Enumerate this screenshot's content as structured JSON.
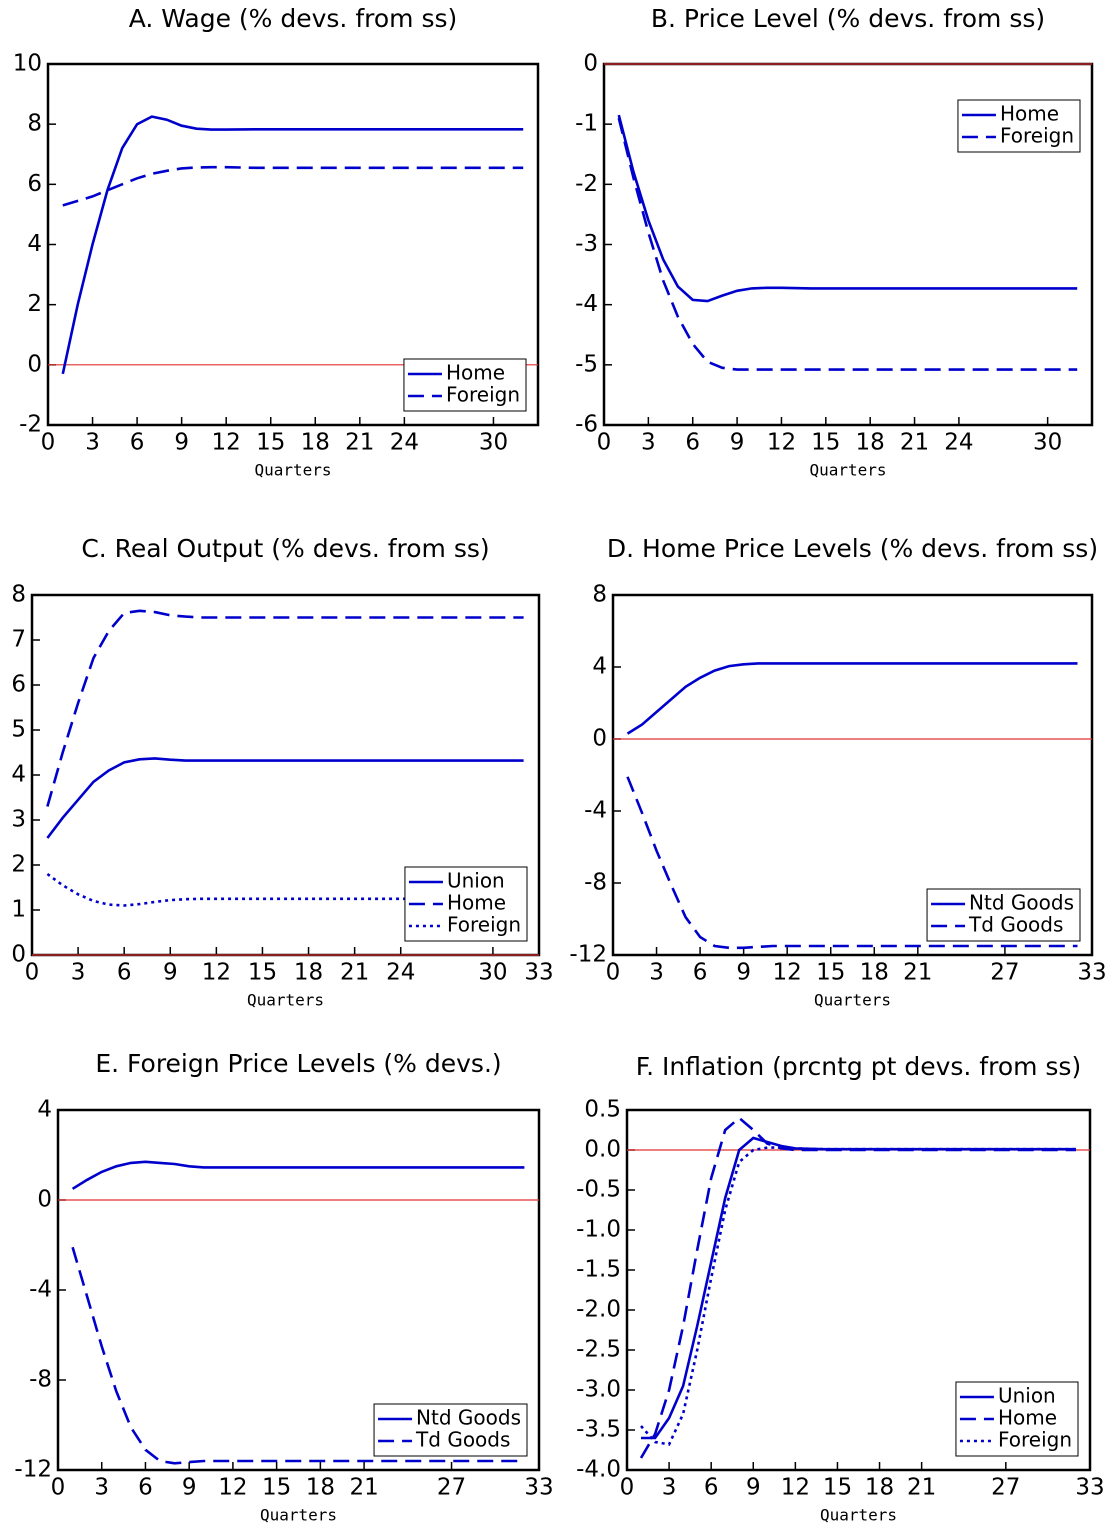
{
  "chart_data": [
    {
      "type": "line",
      "title": "A. Wage (% devs. from ss)",
      "x_label": "Quarters",
      "x": [
        1,
        2,
        3,
        4,
        5,
        6,
        7,
        8,
        9,
        10,
        11,
        12,
        14,
        16,
        20,
        24,
        28,
        32
      ],
      "xlim": [
        0,
        33
      ],
      "xticks": [
        0,
        3,
        6,
        9,
        12,
        15,
        18,
        21,
        24,
        30
      ],
      "ylim": [
        -2,
        10
      ],
      "yticks": [
        -2,
        0,
        2,
        4,
        6,
        8,
        10
      ],
      "zero_line": "#e03030",
      "legend": "lower right",
      "series": [
        {
          "name": "Home",
          "color": "#0000cc",
          "dash": "solid",
          "values": [
            -0.3,
            2.0,
            4.0,
            5.8,
            7.2,
            8.0,
            8.25,
            8.15,
            7.95,
            7.85,
            7.82,
            7.82,
            7.83,
            7.83,
            7.83,
            7.83,
            7.83,
            7.83
          ]
        },
        {
          "name": "Foreign",
          "color": "#0000cc",
          "dash": "dashed",
          "values": [
            5.3,
            5.45,
            5.6,
            5.8,
            6.0,
            6.2,
            6.35,
            6.45,
            6.53,
            6.56,
            6.57,
            6.57,
            6.55,
            6.55,
            6.55,
            6.55,
            6.55,
            6.55
          ]
        }
      ]
    },
    {
      "type": "line",
      "title": "B. Price Level (% devs. from ss)",
      "x_label": "Quarters",
      "x": [
        1,
        2,
        3,
        4,
        5,
        6,
        7,
        8,
        9,
        10,
        11,
        12,
        14,
        16,
        20,
        24,
        28,
        32
      ],
      "xlim": [
        0,
        33
      ],
      "xticks": [
        0,
        3,
        6,
        9,
        12,
        15,
        18,
        21,
        24,
        30
      ],
      "ylim": [
        -6,
        0
      ],
      "yticks": [
        -6,
        -5,
        -4,
        -3,
        -2,
        -1,
        0
      ],
      "zero_line": "#e03030",
      "legend": "upper right",
      "series": [
        {
          "name": "Home",
          "color": "#0000cc",
          "dash": "solid",
          "values": [
            -0.85,
            -1.8,
            -2.6,
            -3.25,
            -3.7,
            -3.92,
            -3.94,
            -3.85,
            -3.77,
            -3.73,
            -3.72,
            -3.72,
            -3.73,
            -3.73,
            -3.73,
            -3.73,
            -3.73,
            -3.73
          ]
        },
        {
          "name": "Foreign",
          "color": "#0000cc",
          "dash": "dashed",
          "values": [
            -0.9,
            -1.9,
            -2.8,
            -3.6,
            -4.2,
            -4.65,
            -4.95,
            -5.05,
            -5.08,
            -5.08,
            -5.08,
            -5.08,
            -5.08,
            -5.08,
            -5.08,
            -5.08,
            -5.08,
            -5.08
          ]
        }
      ]
    },
    {
      "type": "line",
      "title": "C. Real Output (% devs. from ss)",
      "x_label": "Quarters",
      "x": [
        1,
        2,
        3,
        4,
        5,
        6,
        7,
        8,
        9,
        10,
        11,
        12,
        14,
        16,
        20,
        24,
        28,
        32
      ],
      "xlim": [
        0,
        33
      ],
      "xticks": [
        0,
        3,
        6,
        9,
        12,
        15,
        18,
        21,
        24,
        30,
        33
      ],
      "ylim": [
        0,
        8
      ],
      "yticks": [
        0,
        1,
        2,
        3,
        4,
        5,
        6,
        7,
        8
      ],
      "zero_line": "#e03030",
      "legend": "lower right",
      "series": [
        {
          "name": "Union",
          "color": "#0000cc",
          "dash": "solid",
          "values": [
            2.6,
            3.05,
            3.45,
            3.85,
            4.1,
            4.28,
            4.35,
            4.37,
            4.34,
            4.32,
            4.32,
            4.32,
            4.32,
            4.32,
            4.32,
            4.32,
            4.32,
            4.32
          ]
        },
        {
          "name": "Home",
          "color": "#0000cc",
          "dash": "dashed",
          "values": [
            3.3,
            4.5,
            5.6,
            6.6,
            7.2,
            7.6,
            7.65,
            7.62,
            7.55,
            7.52,
            7.5,
            7.5,
            7.5,
            7.5,
            7.5,
            7.5,
            7.5,
            7.5
          ]
        },
        {
          "name": "Foreign",
          "color": "#0000cc",
          "dash": "dotted",
          "values": [
            1.8,
            1.55,
            1.35,
            1.2,
            1.12,
            1.1,
            1.13,
            1.18,
            1.22,
            1.24,
            1.25,
            1.25,
            1.25,
            1.25,
            1.25,
            1.25,
            1.25,
            1.25
          ]
        }
      ]
    },
    {
      "type": "line",
      "title": "D. Home Price Levels (% devs. from ss)",
      "x_label": "Quarters",
      "x": [
        1,
        2,
        3,
        4,
        5,
        6,
        7,
        8,
        9,
        10,
        11,
        12,
        14,
        16,
        20,
        24,
        28,
        32
      ],
      "xlim": [
        0,
        33
      ],
      "xticks": [
        0,
        3,
        6,
        9,
        12,
        15,
        18,
        21,
        27,
        33
      ],
      "ylim": [
        -12,
        8
      ],
      "yticks": [
        -12,
        -8,
        -4,
        0,
        4,
        8
      ],
      "zero_line": "#e03030",
      "legend": "lower right",
      "series": [
        {
          "name": "Ntd Goods",
          "color": "#0000cc",
          "dash": "solid",
          "values": [
            0.3,
            0.8,
            1.5,
            2.2,
            2.9,
            3.4,
            3.8,
            4.05,
            4.15,
            4.2,
            4.2,
            4.2,
            4.2,
            4.2,
            4.2,
            4.2,
            4.2,
            4.2
          ]
        },
        {
          "name": "Td Goods",
          "color": "#0000cc",
          "dash": "dashed",
          "values": [
            -2.1,
            -4.1,
            -6.2,
            -8.1,
            -9.9,
            -11.0,
            -11.5,
            -11.6,
            -11.6,
            -11.55,
            -11.5,
            -11.5,
            -11.5,
            -11.5,
            -11.5,
            -11.5,
            -11.5,
            -11.5
          ]
        }
      ]
    },
    {
      "type": "line",
      "title": "E. Foreign Price Levels (% devs.)",
      "x_label": "Quarters",
      "x": [
        1,
        2,
        3,
        4,
        5,
        6,
        7,
        8,
        9,
        10,
        11,
        12,
        14,
        16,
        20,
        24,
        28,
        32
      ],
      "xlim": [
        0,
        33
      ],
      "xticks": [
        0,
        3,
        6,
        9,
        12,
        15,
        18,
        21,
        27,
        33
      ],
      "ylim": [
        -12,
        4
      ],
      "yticks": [
        -12,
        -8,
        -4,
        0,
        4
      ],
      "zero_line": "#e03030",
      "legend": "lower right",
      "series": [
        {
          "name": "Ntd Goods",
          "color": "#0000cc",
          "dash": "solid",
          "values": [
            0.5,
            0.9,
            1.25,
            1.5,
            1.65,
            1.7,
            1.65,
            1.6,
            1.5,
            1.45,
            1.45,
            1.45,
            1.45,
            1.45,
            1.45,
            1.45,
            1.45,
            1.45
          ]
        },
        {
          "name": "Td Goods",
          "color": "#0000cc",
          "dash": "dashed",
          "values": [
            -2.1,
            -4.3,
            -6.5,
            -8.5,
            -10.1,
            -11.1,
            -11.6,
            -11.7,
            -11.65,
            -11.6,
            -11.6,
            -11.6,
            -11.6,
            -11.6,
            -11.6,
            -11.6,
            -11.6,
            -11.6
          ]
        }
      ]
    },
    {
      "type": "line",
      "title": "F. Inflation (prcntg pt devs. from ss)",
      "x_label": "Quarters",
      "x": [
        1,
        2,
        3,
        4,
        5,
        6,
        7,
        8,
        9,
        10,
        11,
        12,
        14,
        16,
        20,
        24,
        28,
        32
      ],
      "xlim": [
        0,
        33
      ],
      "xticks": [
        0,
        3,
        6,
        9,
        12,
        15,
        18,
        21,
        27,
        33
      ],
      "ylim": [
        -4,
        0.5
      ],
      "yticks": [
        {
          "value": -4,
          "label": "-4.0"
        },
        -3.5,
        {
          "value": -3,
          "label": "-3.0"
        },
        -2.5,
        {
          "value": -2,
          "label": "-2.0"
        },
        -1.5,
        {
          "value": -1,
          "label": "-1.0"
        },
        -0.5,
        {
          "value": 0,
          "label": "0.0"
        },
        0.5
      ],
      "zero_line": "#e03030",
      "legend": "lower right",
      "series": [
        {
          "name": "Union",
          "color": "#0000cc",
          "dash": "solid",
          "values": [
            -3.6,
            -3.6,
            -3.35,
            -2.95,
            -2.2,
            -1.4,
            -0.6,
            0.0,
            0.15,
            0.1,
            0.05,
            0.02,
            0.01,
            0.01,
            0.01,
            0.01,
            0.01,
            0.01
          ]
        },
        {
          "name": "Home",
          "color": "#0000cc",
          "dash": "dashed",
          "values": [
            -3.85,
            -3.55,
            -3.0,
            -2.2,
            -1.25,
            -0.35,
            0.25,
            0.4,
            0.25,
            0.08,
            0.02,
            0.0,
            0.0,
            0.0,
            0.0,
            0.0,
            0.0,
            0.0
          ]
        },
        {
          "name": "Foreign",
          "color": "#0000cc",
          "dash": "dotted",
          "values": [
            -3.45,
            -3.65,
            -3.68,
            -3.3,
            -2.5,
            -1.6,
            -0.75,
            -0.15,
            0.0,
            0.03,
            0.03,
            0.02,
            0.01,
            0.01,
            0.01,
            0.01,
            0.01,
            0.01
          ]
        }
      ]
    }
  ]
}
